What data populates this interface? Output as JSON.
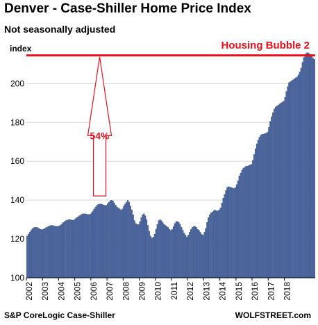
{
  "header": {
    "title": "Denver  - Case-Shiller Home Price Index",
    "subtitle": "Not seasonally adjusted"
  },
  "footer": {
    "source": "S&P CoreLogic Case-Shiller",
    "credit": "WOLFSTREET.com"
  },
  "colors": {
    "bar": "#4a67a3",
    "bar_edge": "#1f3566",
    "accent": "#e8101b",
    "grid": "#d9d9d9"
  },
  "chart_data": {
    "type": "bar",
    "title": "Denver  - Case-Shiller Home Price Index",
    "subtitle": "Not seasonally adjusted",
    "ylabel": "index",
    "ylim": [
      100,
      218
    ],
    "yticks": [
      100,
      120,
      140,
      160,
      180,
      200
    ],
    "xticks": [
      "2002",
      "2003",
      "2004",
      "2005",
      "2006",
      "2007",
      "2008",
      "2009",
      "2010",
      "2011",
      "2012",
      "2013",
      "2014",
      "2015",
      "2016",
      "2017",
      "2018"
    ],
    "grid": true,
    "reference_line": {
      "value": 214.5,
      "label": "Housing Bubble 2"
    },
    "annotation": {
      "label": "54%",
      "from_value": 140,
      "to_value": 214.5,
      "x": "2006-07"
    },
    "series": [
      {
        "frequency": "monthly",
        "start": "2002-01",
        "values": [
          121.5,
          122.5,
          123.5,
          124.5,
          125.3,
          125.8,
          126.0,
          126.0,
          125.8,
          125.4,
          125.0,
          124.8,
          125.0,
          125.3,
          125.8,
          126.2,
          126.5,
          126.8,
          127.0,
          127.0,
          126.8,
          126.6,
          126.5,
          126.5,
          126.8,
          127.2,
          127.8,
          128.5,
          129.0,
          129.5,
          129.8,
          130.0,
          130.0,
          129.8,
          129.7,
          129.8,
          130.5,
          131.0,
          131.5,
          132.0,
          132.4,
          132.8,
          133.0,
          133.0,
          132.9,
          132.7,
          132.6,
          132.8,
          133.5,
          134.5,
          135.5,
          136.5,
          137.3,
          137.8,
          138.0,
          138.0,
          137.8,
          137.5,
          137.3,
          137.4,
          138.2,
          139.0,
          139.8,
          140.0,
          139.5,
          138.5,
          137.5,
          136.5,
          136.0,
          135.5,
          135.0,
          135.5,
          137.0,
          138.0,
          139.0,
          140.0,
          139.0,
          137.0,
          135.0,
          132.5,
          129.5,
          128.0,
          127.5,
          127.5,
          129.0,
          131.0,
          132.5,
          133.0,
          132.0,
          130.0,
          127.0,
          124.0,
          121.5,
          120.5,
          121.0,
          122.5,
          125.0,
          127.5,
          129.5,
          130.0,
          129.5,
          128.5,
          127.5,
          127.0,
          126.5,
          126.0,
          125.0,
          124.5,
          125.0,
          126.5,
          128.0,
          129.0,
          129.0,
          128.5,
          127.5,
          126.0,
          124.5,
          123.0,
          122.0,
          121.0,
          122.0,
          123.5,
          125.0,
          126.0,
          126.5,
          126.5,
          126.0,
          125.0,
          124.5,
          123.5,
          122.5,
          122.0,
          123.5,
          125.5,
          128.5,
          131.0,
          132.5,
          133.5,
          134.0,
          134.5,
          135.0,
          134.5,
          134.5,
          135.0,
          136.0,
          138.5,
          141.0,
          143.0,
          145.0,
          146.5,
          147.0,
          146.8,
          146.5,
          146.3,
          146.0,
          146.5,
          148.0,
          150.0,
          152.5,
          154.0,
          155.5,
          156.5,
          157.0,
          157.5,
          157.5,
          157.8,
          158.0,
          158.5,
          160.5,
          163.5,
          166.5,
          169.0,
          171.0,
          172.5,
          173.5,
          174.0,
          174.0,
          174.3,
          174.5,
          175.0,
          177.5,
          180.5,
          183.0,
          185.0,
          187.0,
          188.0,
          188.5,
          189.0,
          189.5,
          190.0,
          190.5,
          191.0,
          193.0,
          196.0,
          198.5,
          200.5,
          201.0,
          201.5,
          202.0,
          202.5,
          203.0,
          203.5,
          204.5,
          206.0,
          208.0,
          211.0,
          213.5,
          215.0,
          215.8,
          216.0,
          215.5,
          215.0,
          214.0,
          213.0,
          212.5
        ]
      }
    ]
  }
}
